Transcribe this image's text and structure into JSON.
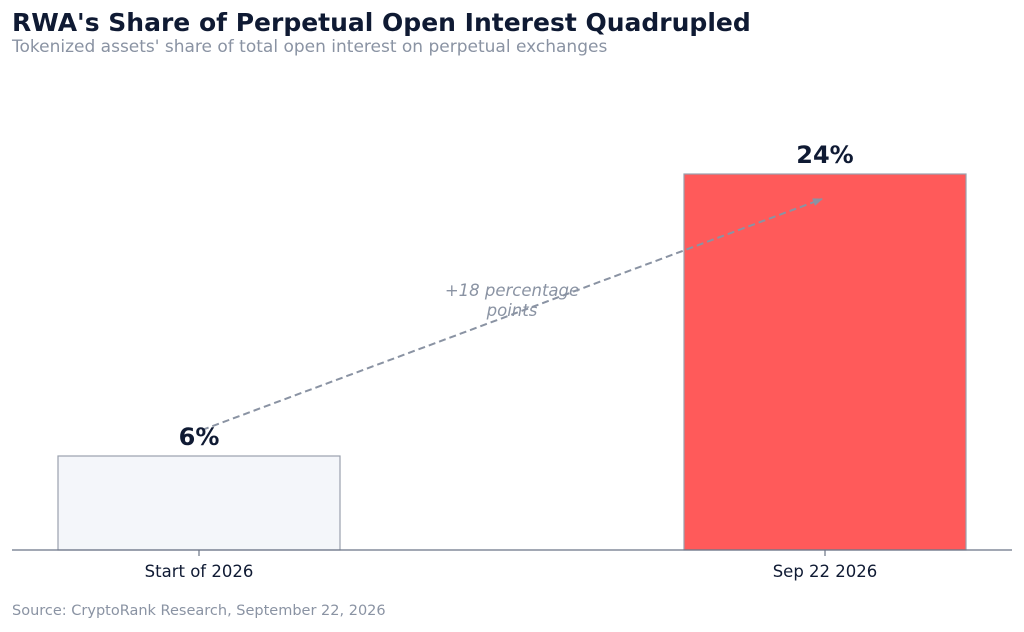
{
  "chart_data": {
    "type": "bar",
    "title": "RWA's Share of Perpetual Open Interest Quadrupled",
    "subtitle": "Tokenized assets' share of total open interest on perpetual exchanges",
    "categories": [
      "Start of 2026",
      "Sep 22 2026"
    ],
    "values": [
      6,
      24
    ],
    "data_labels": [
      "6%",
      "24%"
    ],
    "unit": "%",
    "ylim": [
      0,
      30
    ],
    "xlabel": "",
    "ylabel": "",
    "grid": false,
    "legend": "none",
    "colors": {
      "bar_start": "#f4f6fa",
      "bar_start_edge": "#9aa1ad",
      "bar_end": "#ff5a5a",
      "bar_end_edge": "#9aa1ad",
      "arrow": "#8a93a3",
      "axis": "#6b7486",
      "label": "#0f1a33"
    },
    "annotation": {
      "text_line1": "+18 percentage",
      "text_line2": "points",
      "style": "dashed-arrow"
    },
    "source": "Source: CryptoRank Research, September 22, 2026"
  }
}
